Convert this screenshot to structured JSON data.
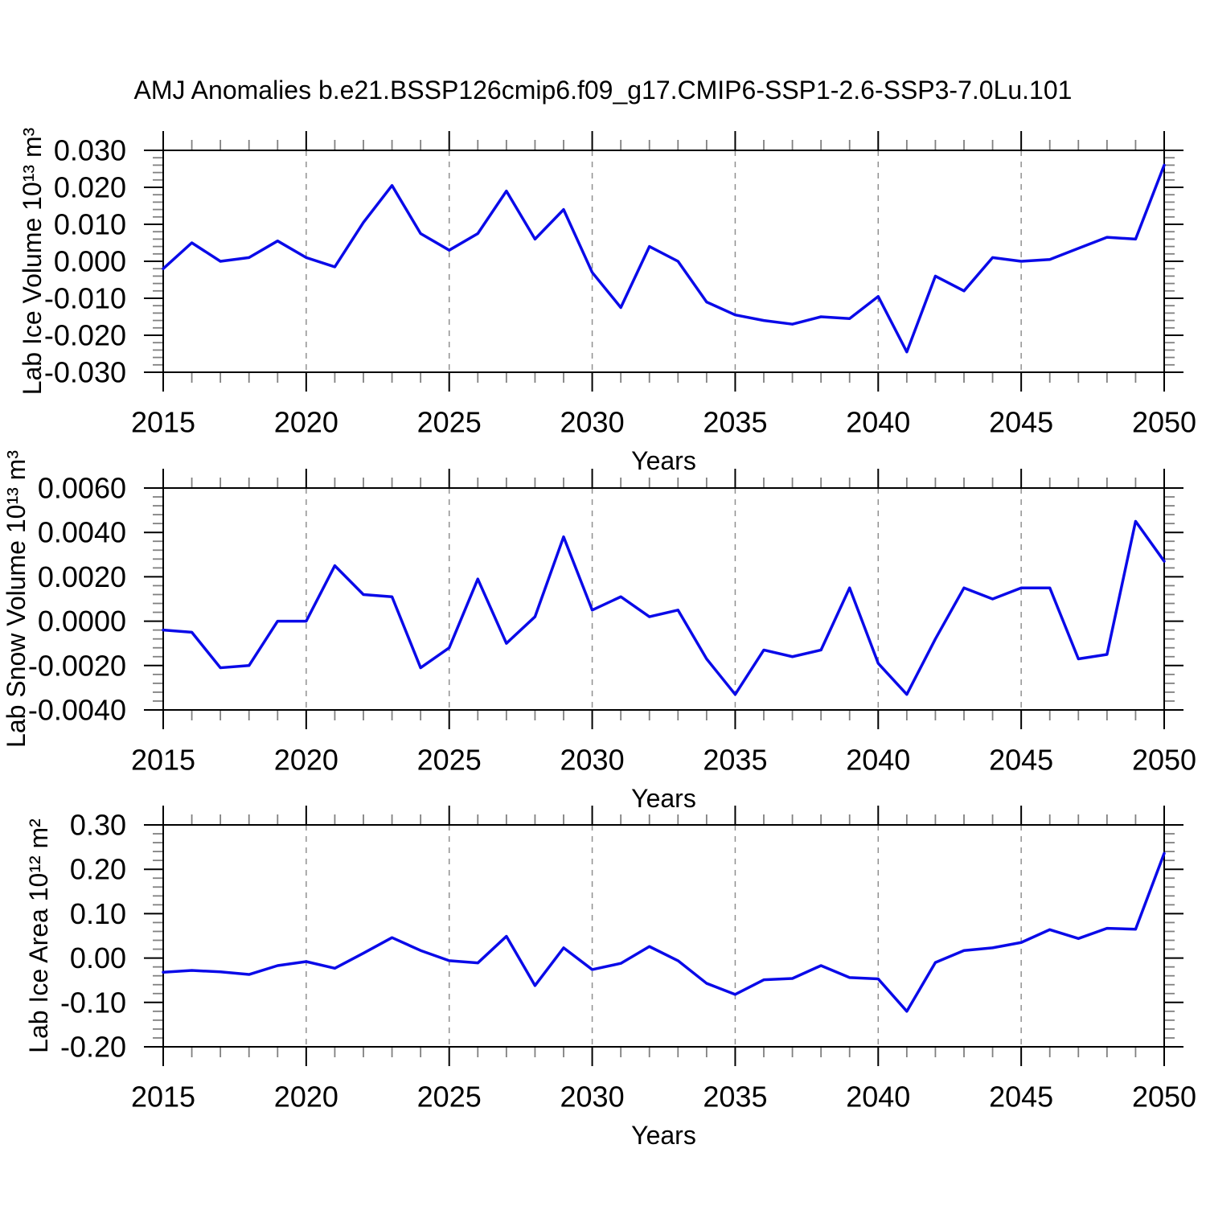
{
  "title": "AMJ Anomalies b.e21.BSSP126cmip6.f09_g17.CMIP6-SSP1-2.6-SSP3-7.0Lu.101",
  "line_color": "#0a0ae8",
  "x_axis": {
    "min": 2015,
    "max": 2050,
    "major_step": 5,
    "tick_values": [
      2015,
      2020,
      2025,
      2030,
      2035,
      2040,
      2045,
      2050
    ],
    "tick_labels": [
      "2015",
      "2020",
      "2025",
      "2030",
      "2035",
      "2040",
      "2045",
      "2050"
    ],
    "grid_years": [
      2020,
      2025,
      2030,
      2035,
      2040,
      2045
    ],
    "years": [
      2015,
      2016,
      2017,
      2018,
      2019,
      2020,
      2021,
      2022,
      2023,
      2024,
      2025,
      2026,
      2027,
      2028,
      2029,
      2030,
      2031,
      2032,
      2033,
      2034,
      2035,
      2036,
      2037,
      2038,
      2039,
      2040,
      2041,
      2042,
      2043,
      2044,
      2045,
      2046,
      2047,
      2048,
      2049,
      2050
    ]
  },
  "chart_data": [
    {
      "id": "lab-ice-volume",
      "type": "line",
      "ylabel": "Lab Ice Volume 10¹³ m³",
      "xlabel": "Years",
      "ylim": [
        -0.03,
        0.03
      ],
      "ytick_values": [
        0.03,
        0.02,
        0.01,
        0.0,
        -0.01,
        -0.02,
        -0.03
      ],
      "ytick_labels": [
        "0.030",
        "0.020",
        "0.010",
        "0.000",
        "-0.010",
        "-0.020",
        "-0.030"
      ],
      "y_minor_step": 0.002,
      "grid": "vertical-dashed",
      "legend": "none",
      "line_color": "#0a0ae8",
      "values": [
        -0.002,
        0.005,
        0.0,
        0.001,
        0.0055,
        0.001,
        -0.0015,
        0.0105,
        0.0205,
        0.0075,
        0.003,
        0.0075,
        0.019,
        0.006,
        0.014,
        -0.003,
        -0.0125,
        0.004,
        0.0,
        -0.011,
        -0.0145,
        -0.016,
        -0.017,
        -0.015,
        -0.0155,
        -0.0095,
        -0.0245,
        -0.004,
        -0.008,
        0.001,
        0.0,
        0.0005,
        0.0035,
        0.0065,
        0.006,
        0.026
      ]
    },
    {
      "id": "lab-snow-volume",
      "type": "line",
      "ylabel": "Lab Snow Volume 10¹³ m³",
      "xlabel": "Years",
      "ylim": [
        -0.004,
        0.006
      ],
      "ytick_values": [
        0.006,
        0.004,
        0.002,
        0.0,
        -0.002,
        -0.004
      ],
      "ytick_labels": [
        "0.0060",
        "0.0040",
        "0.0020",
        "0.0000",
        "-0.0020",
        "-0.0040"
      ],
      "y_minor_step": 0.0004,
      "grid": "vertical-dashed",
      "legend": "none",
      "line_color": "#0a0ae8",
      "values": [
        -0.0004,
        -0.0005,
        -0.0021,
        -0.002,
        0.0,
        0.0,
        0.0025,
        0.0012,
        0.0011,
        -0.0021,
        -0.0012,
        0.0019,
        -0.001,
        0.0002,
        0.0038,
        0.0005,
        0.0011,
        0.0002,
        0.0005,
        -0.0017,
        -0.0033,
        -0.0013,
        -0.0016,
        -0.0013,
        0.0015,
        -0.0019,
        -0.0033,
        -0.0008,
        0.0015,
        0.001,
        0.0015,
        0.0015,
        -0.0017,
        -0.0015,
        0.0045,
        0.0027
      ]
    },
    {
      "id": "lab-ice-area",
      "type": "line",
      "ylabel": "Lab Ice Area 10¹² m²",
      "xlabel": "Years",
      "ylim": [
        -0.2,
        0.3
      ],
      "ytick_values": [
        0.3,
        0.2,
        0.1,
        0.0,
        -0.1,
        -0.2
      ],
      "ytick_labels": [
        "0.30",
        "0.20",
        "0.10",
        "0.00",
        "-0.10",
        "-0.20"
      ],
      "y_minor_step": 0.02,
      "grid": "vertical-dashed",
      "legend": "none",
      "line_color": "#0a0ae8",
      "values": [
        -0.032,
        -0.028,
        -0.031,
        -0.037,
        -0.017,
        -0.008,
        -0.023,
        0.011,
        0.046,
        0.017,
        -0.006,
        -0.011,
        0.049,
        -0.062,
        0.023,
        -0.026,
        -0.012,
        0.026,
        -0.006,
        -0.057,
        -0.082,
        -0.049,
        -0.046,
        -0.017,
        -0.044,
        -0.047,
        -0.12,
        -0.01,
        0.017,
        0.023,
        0.035,
        0.064,
        0.044,
        0.067,
        0.065,
        0.236
      ]
    }
  ]
}
